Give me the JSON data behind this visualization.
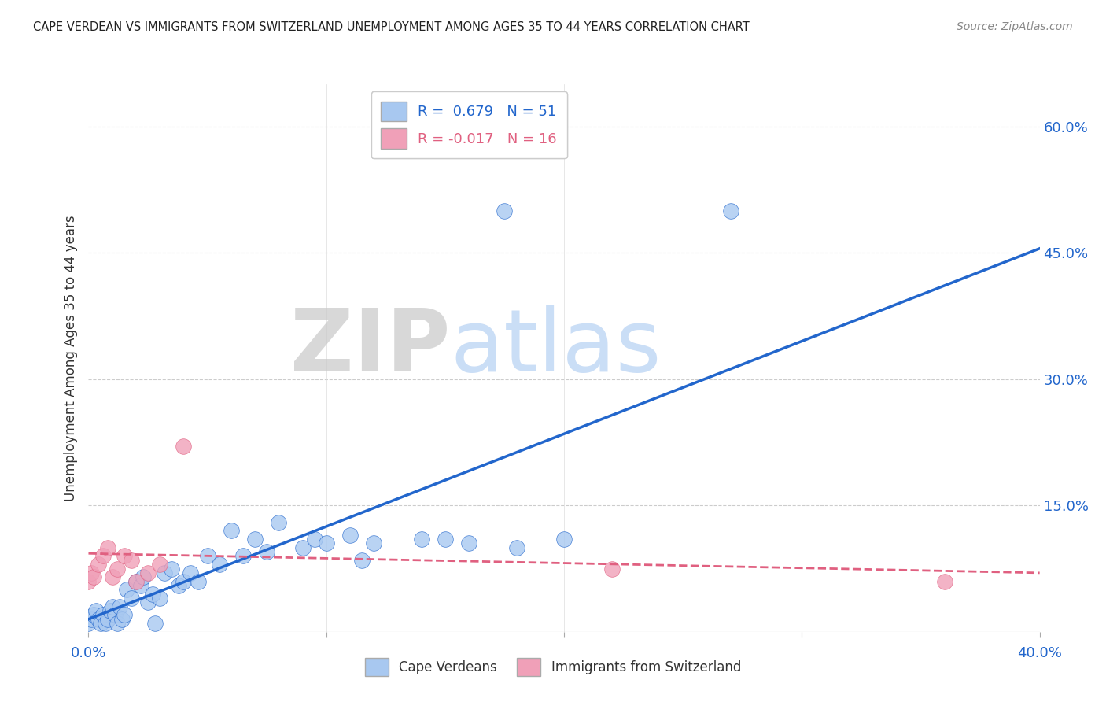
{
  "title": "CAPE VERDEAN VS IMMIGRANTS FROM SWITZERLAND UNEMPLOYMENT AMONG AGES 35 TO 44 YEARS CORRELATION CHART",
  "source": "Source: ZipAtlas.com",
  "ylabel": "Unemployment Among Ages 35 to 44 years",
  "xlim": [
    0.0,
    0.4
  ],
  "ylim": [
    0.0,
    0.65
  ],
  "xtick_values": [
    0.0,
    0.1,
    0.2,
    0.3,
    0.4
  ],
  "xtick_labels_show": [
    "0.0%",
    "",
    "",
    "",
    "40.0%"
  ],
  "ytick_labels_right": [
    "15.0%",
    "30.0%",
    "45.0%",
    "60.0%"
  ],
  "ytick_values_right": [
    0.15,
    0.3,
    0.45,
    0.6
  ],
  "watermark_zip": "ZIP",
  "watermark_atlas": "atlas",
  "legend_entry1": "R =  0.679   N = 51",
  "legend_entry2": "R = -0.017   N = 16",
  "legend_label1": "Cape Verdeans",
  "legend_label2": "Immigrants from Switzerland",
  "color_blue": "#a8c8f0",
  "color_pink": "#f0a0b8",
  "color_blue_line": "#2266cc",
  "color_pink_line": "#e06080",
  "title_color": "#222222",
  "source_color": "#888888",
  "r_value_color_blue": "#2266cc",
  "r_value_color_pink": "#e06080",
  "right_axis_color": "#2266cc",
  "blue_scatter_x": [
    0.0,
    0.001,
    0.002,
    0.003,
    0.004,
    0.005,
    0.006,
    0.007,
    0.008,
    0.009,
    0.01,
    0.011,
    0.012,
    0.013,
    0.014,
    0.015,
    0.016,
    0.018,
    0.02,
    0.022,
    0.023,
    0.025,
    0.027,
    0.03,
    0.032,
    0.035,
    0.038,
    0.04,
    0.043,
    0.046,
    0.05,
    0.055,
    0.06,
    0.065,
    0.07,
    0.075,
    0.08,
    0.09,
    0.095,
    0.1,
    0.11,
    0.115,
    0.12,
    0.14,
    0.15,
    0.16,
    0.18,
    0.2,
    0.175,
    0.27,
    0.028
  ],
  "blue_scatter_y": [
    0.01,
    0.015,
    0.02,
    0.025,
    0.015,
    0.01,
    0.02,
    0.01,
    0.015,
    0.025,
    0.03,
    0.02,
    0.01,
    0.03,
    0.015,
    0.02,
    0.05,
    0.04,
    0.06,
    0.055,
    0.065,
    0.035,
    0.045,
    0.04,
    0.07,
    0.075,
    0.055,
    0.06,
    0.07,
    0.06,
    0.09,
    0.08,
    0.12,
    0.09,
    0.11,
    0.095,
    0.13,
    0.1,
    0.11,
    0.105,
    0.115,
    0.085,
    0.105,
    0.11,
    0.11,
    0.105,
    0.1,
    0.11,
    0.5,
    0.5,
    0.01
  ],
  "pink_scatter_x": [
    0.0,
    0.001,
    0.002,
    0.004,
    0.006,
    0.008,
    0.01,
    0.012,
    0.015,
    0.018,
    0.02,
    0.025,
    0.03,
    0.04,
    0.22,
    0.36
  ],
  "pink_scatter_y": [
    0.06,
    0.07,
    0.065,
    0.08,
    0.09,
    0.1,
    0.065,
    0.075,
    0.09,
    0.085,
    0.06,
    0.07,
    0.08,
    0.22,
    0.075,
    0.06
  ],
  "blue_line_x": [
    0.0,
    0.4
  ],
  "blue_line_y": [
    0.015,
    0.455
  ],
  "pink_line_x": [
    0.0,
    0.4
  ],
  "pink_line_y": [
    0.093,
    0.07
  ],
  "background_color": "#ffffff",
  "grid_color": "#cccccc"
}
